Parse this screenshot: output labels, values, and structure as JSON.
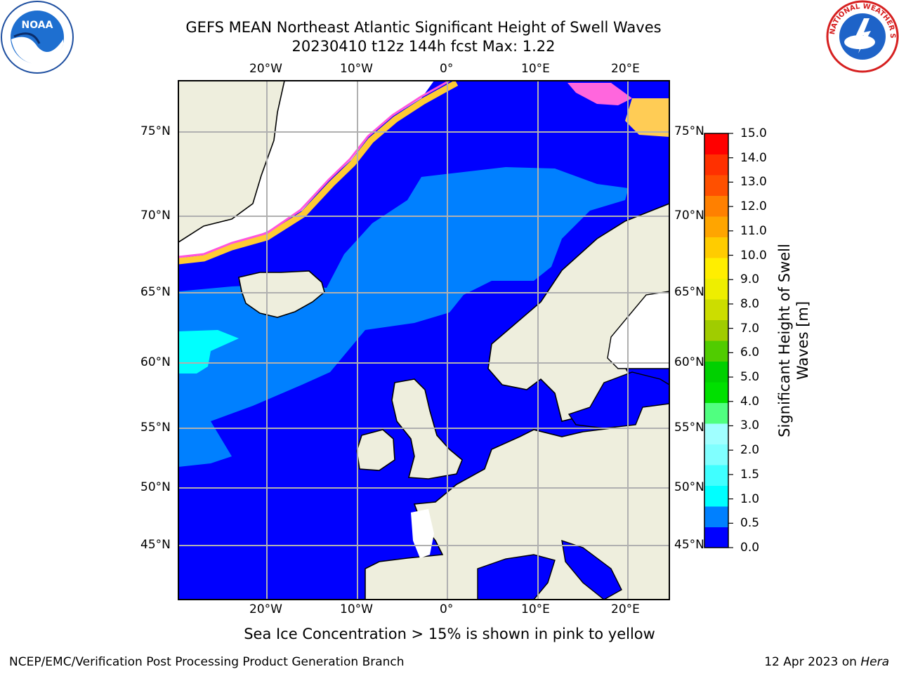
{
  "header": {
    "title_line1": "GEFS MEAN Northeast Atlantic Significant Height of Swell Waves",
    "title_line2": "20230410 t12z 144h fcst   Max: 1.22"
  },
  "logos": {
    "left": "NOAA",
    "right": "NATIONAL WEATHER SERVICE"
  },
  "map": {
    "lon_labels": [
      "20°W",
      "10°W",
      "0°",
      "10°E",
      "20°E"
    ],
    "lat_labels": [
      "75°N",
      "70°N",
      "65°N",
      "60°N",
      "55°N",
      "50°N",
      "45°N"
    ],
    "colors": {
      "ocean": "#0000ff",
      "land": "#eeeedd",
      "grid": "#b0b0b0",
      "ice_pink": "#ff44ee",
      "ice_yellow": "#ffee00"
    }
  },
  "colorbar": {
    "label": "Significant Height of Swell Waves [m]",
    "ticks": [
      "15.0",
      "14.0",
      "13.0",
      "12.0",
      "11.0",
      "10.0",
      "9.0",
      "8.0",
      "7.0",
      "6.0",
      "5.0",
      "4.0",
      "3.0",
      "2.0",
      "1.5",
      "1.0",
      "0.5",
      "0.0"
    ],
    "colors": [
      "#0000ff",
      "#0080ff",
      "#00ffff",
      "#40ffff",
      "#80ffff",
      "#a0ffff",
      "#50ff80",
      "#00e000",
      "#00d000",
      "#50cc00",
      "#a0cc00",
      "#ccdd00",
      "#eeee00",
      "#ffee00",
      "#ffcc00",
      "#ffa500",
      "#ff8000",
      "#ff5000",
      "#ff3000",
      "#ff0000"
    ]
  },
  "footer": {
    "note": "Sea Ice Concentration > 15% is shown in pink to yellow",
    "credit": "NCEP/EMC/Verification Post Processing Product Generation Branch",
    "date_prefix": "12 Apr 2023 on ",
    "date_host": "Hera"
  }
}
